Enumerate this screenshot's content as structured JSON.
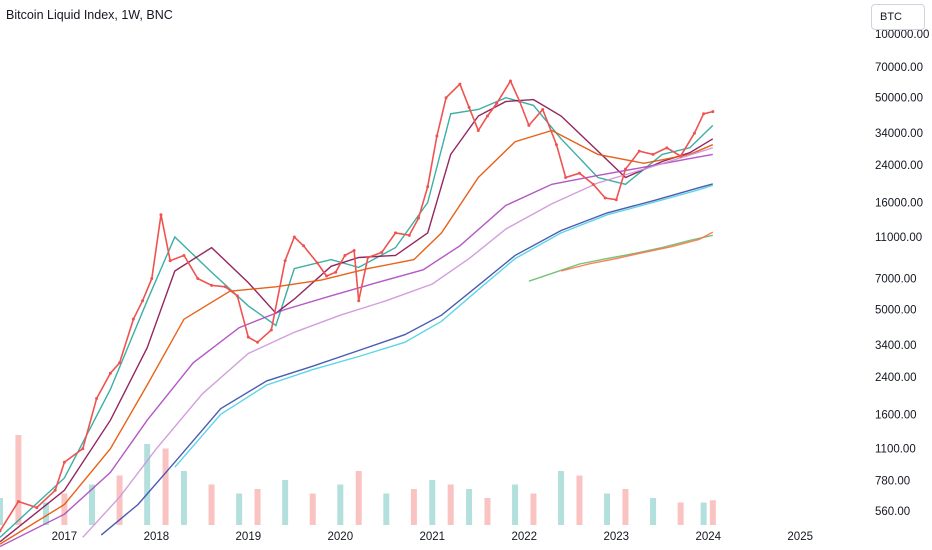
{
  "header": {
    "title": "Bitcoin Liquid Index, 1W, BNC",
    "symbol_input": "BTC"
  },
  "chart_data": {
    "type": "line",
    "title": "Bitcoin Liquid Index, 1W, BNC",
    "scale": "log",
    "ylim": [
      480,
      100000
    ],
    "xlim": [
      2016.3,
      2025.65
    ],
    "y_ticks": [
      "100000.00",
      "70000.00",
      "50000.00",
      "34000.00",
      "24000.00",
      "16000.00",
      "11000.00",
      "7000.00",
      "5000.00",
      "3400.00",
      "2400.00",
      "1600.00",
      "1100.00",
      "780.00",
      "560.00"
    ],
    "y_tick_values": [
      100000,
      70000,
      50000,
      34000,
      24000,
      16000,
      11000,
      7000,
      5000,
      3400,
      2400,
      1600,
      1100,
      780,
      560
    ],
    "x_ticks": [
      "2017",
      "2018",
      "2019",
      "2020",
      "2021",
      "2022",
      "2023",
      "2024",
      "2025"
    ],
    "x_tick_values": [
      2017,
      2018,
      2019,
      2020,
      2021,
      2022,
      2023,
      2024,
      2025
    ],
    "grid": false,
    "legend": "none",
    "price": {
      "x": [
        2016.3,
        2016.5,
        2016.7,
        2016.9,
        2017.0,
        2017.2,
        2017.35,
        2017.5,
        2017.6,
        2017.75,
        2017.85,
        2017.95,
        2018.05,
        2018.15,
        2018.3,
        2018.45,
        2018.6,
        2018.75,
        2018.88,
        2019.0,
        2019.1,
        2019.25,
        2019.4,
        2019.5,
        2019.6,
        2019.75,
        2019.85,
        2019.95,
        2020.05,
        2020.15,
        2020.2,
        2020.3,
        2020.45,
        2020.6,
        2020.75,
        2020.85,
        2020.95,
        2021.05,
        2021.15,
        2021.3,
        2021.4,
        2021.5,
        2021.6,
        2021.7,
        2021.85,
        2021.95,
        2022.05,
        2022.2,
        2022.35,
        2022.45,
        2022.6,
        2022.75,
        2022.88,
        2023.0,
        2023.1,
        2023.25,
        2023.4,
        2023.55,
        2023.7,
        2023.85,
        2023.95,
        2024.05
      ],
      "close": [
        450,
        620,
        580,
        700,
        950,
        1100,
        1900,
        2500,
        2800,
        4500,
        5500,
        7000,
        14000,
        8500,
        9000,
        7000,
        6500,
        6400,
        5800,
        3700,
        3500,
        4000,
        8500,
        11000,
        10000,
        8300,
        7200,
        7500,
        9000,
        9500,
        5500,
        8800,
        9300,
        11500,
        11200,
        13500,
        19000,
        33000,
        50000,
        58000,
        45000,
        35000,
        41000,
        47000,
        60000,
        48000,
        37000,
        44000,
        30000,
        21000,
        22000,
        19500,
        16800,
        16500,
        23000,
        28000,
        27000,
        29000,
        26500,
        34000,
        42000,
        43000
      ],
      "color": "#ef5350"
    },
    "series": [
      {
        "color": "#26a69a",
        "x": [
          2016.3,
          2017.0,
          2017.5,
          2017.9,
          2018.2,
          2018.6,
          2019.0,
          2019.3,
          2019.5,
          2019.9,
          2020.2,
          2020.6,
          2020.95,
          2021.2,
          2021.5,
          2021.8,
          2022.1,
          2022.4,
          2022.8,
          2023.1,
          2023.5,
          2023.8,
          2024.05
        ],
        "values": [
          420,
          800,
          2100,
          5500,
          11000,
          7500,
          5200,
          4200,
          7800,
          8600,
          7900,
          9800,
          16000,
          42000,
          44000,
          50000,
          46000,
          32000,
          21000,
          19500,
          27000,
          29000,
          37000
        ]
      },
      {
        "color": "#880e4f",
        "x": [
          2016.3,
          2017.0,
          2017.5,
          2017.9,
          2018.2,
          2018.6,
          2019.0,
          2019.3,
          2019.5,
          2019.9,
          2020.2,
          2020.6,
          2020.95,
          2021.2,
          2021.5,
          2021.8,
          2022.1,
          2022.4,
          2022.8,
          2023.1,
          2023.5,
          2023.8,
          2024.05
        ],
        "values": [
          400,
          700,
          1500,
          3300,
          7600,
          9800,
          6700,
          4800,
          5600,
          8000,
          8800,
          9000,
          11500,
          27000,
          41000,
          48000,
          49000,
          41000,
          28000,
          21000,
          25000,
          27500,
          32000
        ]
      },
      {
        "color": "#e65100",
        "x": [
          2016.3,
          2017.0,
          2017.5,
          2017.9,
          2018.3,
          2018.8,
          2019.3,
          2019.8,
          2020.3,
          2020.8,
          2021.1,
          2021.5,
          2021.9,
          2022.3,
          2022.8,
          2023.3,
          2023.8,
          2024.05
        ],
        "values": [
          390,
          600,
          1100,
          2200,
          4500,
          6100,
          6400,
          6900,
          7800,
          8600,
          11500,
          21000,
          31000,
          35000,
          27000,
          24500,
          27000,
          30000
        ]
      },
      {
        "color": "#ab47bc",
        "x": [
          2016.3,
          2017.0,
          2017.5,
          2017.9,
          2018.4,
          2018.9,
          2019.4,
          2019.9,
          2020.4,
          2020.9,
          2021.3,
          2021.8,
          2022.3,
          2022.8,
          2023.3,
          2023.8,
          2024.05
        ],
        "values": [
          380,
          540,
          850,
          1500,
          2800,
          4100,
          5000,
          5800,
          6700,
          7700,
          10000,
          15500,
          19500,
          21500,
          23500,
          25800,
          27000
        ]
      },
      {
        "color": "#ce93d8",
        "x": [
          2017.2,
          2017.6,
          2018.0,
          2018.5,
          2019.0,
          2019.5,
          2020.0,
          2020.5,
          2021.0,
          2021.4,
          2021.8,
          2022.3,
          2022.8,
          2023.3,
          2023.8,
          2024.05
        ],
        "values": [
          420,
          650,
          1100,
          2000,
          3100,
          3900,
          4700,
          5500,
          6600,
          8700,
          12000,
          15800,
          19800,
          23000,
          26800,
          29000
        ]
      },
      {
        "color": "#3949ab",
        "x": [
          2017.4,
          2017.8,
          2018.2,
          2018.7,
          2019.2,
          2019.7,
          2020.2,
          2020.7,
          2021.1,
          2021.5,
          2021.9,
          2022.4,
          2022.9,
          2023.4,
          2023.9,
          2024.05
        ],
        "values": [
          430,
          600,
          950,
          1700,
          2300,
          2700,
          3200,
          3800,
          4700,
          6500,
          9000,
          11800,
          14300,
          16300,
          18800,
          19600
        ]
      },
      {
        "color": "#4dd0e1",
        "x": [
          2018.2,
          2018.7,
          2019.2,
          2019.7,
          2020.2,
          2020.7,
          2021.1,
          2021.5,
          2021.9,
          2022.4,
          2022.9,
          2023.4,
          2023.9,
          2024.05
        ],
        "values": [
          900,
          1600,
          2200,
          2600,
          3000,
          3500,
          4400,
          6200,
          8700,
          11500,
          14000,
          16000,
          18400,
          19300
        ]
      },
      {
        "color": "#66bb6a",
        "x": [
          2022.05,
          2022.3,
          2022.6,
          2022.9,
          2023.2,
          2023.5,
          2023.8,
          2024.05
        ],
        "values": [
          6800,
          7400,
          8200,
          8700,
          9200,
          9800,
          10600,
          11200
        ]
      },
      {
        "color": "#ff7043",
        "x": [
          2022.4,
          2022.7,
          2023.0,
          2023.3,
          2023.6,
          2023.9,
          2024.05
        ],
        "values": [
          7600,
          8200,
          8700,
          9300,
          9900,
          10700,
          11600
        ]
      }
    ],
    "volume": {
      "color_up": "#26a69a",
      "color_down": "#ef5350",
      "x": [
        2016.3,
        2016.5,
        2016.8,
        2017.0,
        2017.3,
        2017.6,
        2017.9,
        2018.1,
        2018.3,
        2018.6,
        2018.9,
        2019.1,
        2019.4,
        2019.7,
        2020.0,
        2020.2,
        2020.5,
        2020.8,
        2021.0,
        2021.2,
        2021.4,
        2021.6,
        2021.9,
        2022.1,
        2022.4,
        2022.6,
        2022.9,
        2023.1,
        2023.4,
        2023.7,
        2023.95,
        2024.05
      ],
      "values": [
        60,
        200,
        50,
        70,
        90,
        110,
        180,
        170,
        120,
        90,
        70,
        80,
        100,
        70,
        90,
        120,
        70,
        80,
        100,
        90,
        80,
        60,
        90,
        70,
        120,
        110,
        70,
        80,
        60,
        50,
        50,
        55
      ]
    }
  }
}
